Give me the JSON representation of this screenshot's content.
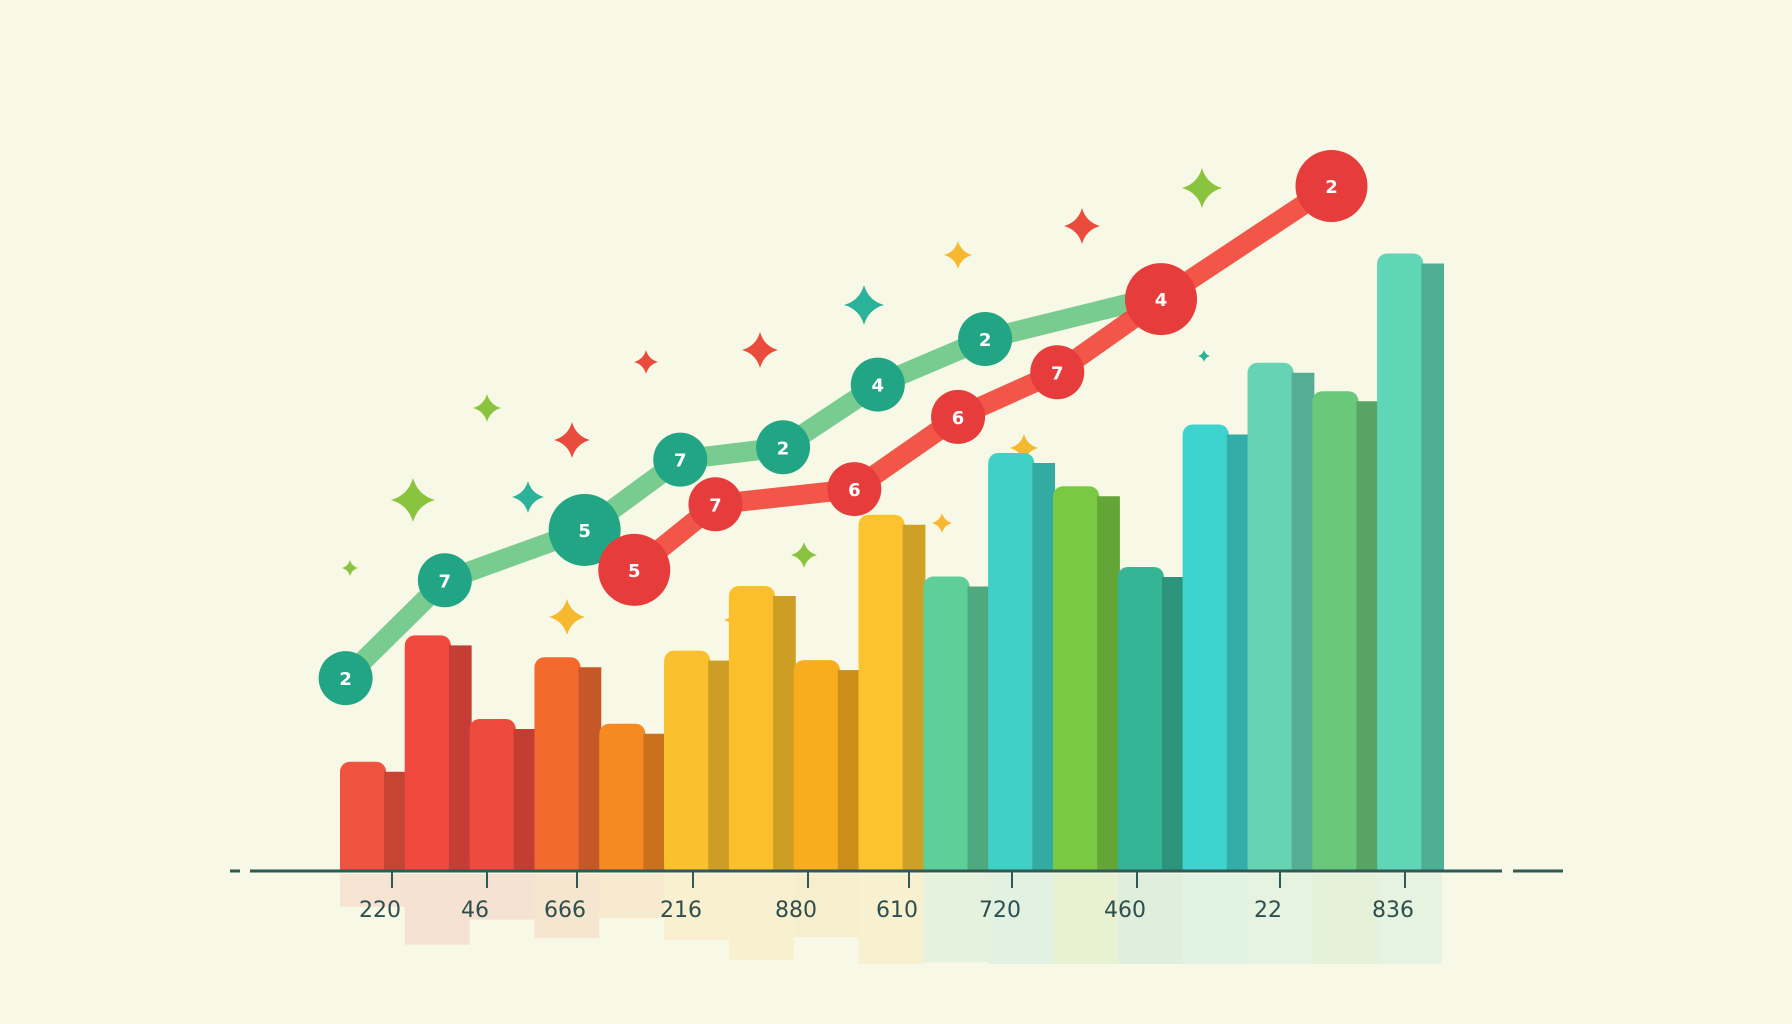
{
  "chart_data": {
    "type": "bar",
    "categories": [
      "220",
      "46",
      "666",
      "216",
      "880",
      "610",
      "720",
      "460",
      "22",
      "836"
    ],
    "bars": [
      {
        "value": 115,
        "color": "#f0533f"
      },
      {
        "value": 248,
        "color": "#f04a3f"
      },
      {
        "value": 160,
        "color": "#ee4a3e"
      },
      {
        "value": 225,
        "color": "#f26a2e"
      },
      {
        "value": 155,
        "color": "#f58a22"
      },
      {
        "value": 232,
        "color": "#fbc02d"
      },
      {
        "value": 300,
        "color": "#fbbf2c"
      },
      {
        "value": 222,
        "color": "#f7ad1e"
      },
      {
        "value": 375,
        "color": "#fbc32e"
      },
      {
        "value": 310,
        "color": "#5fcf9a"
      },
      {
        "value": 440,
        "color": "#3fd1c6"
      },
      {
        "value": 405,
        "color": "#7ac943"
      },
      {
        "value": 320,
        "color": "#35b596"
      },
      {
        "value": 470,
        "color": "#3ed3cf"
      },
      {
        "value": 535,
        "color": "#66d3b5"
      },
      {
        "value": 505,
        "color": "#6ac87a"
      },
      {
        "value": 650,
        "color": "#5fd6b6"
      }
    ],
    "series": [
      {
        "color": "#6cc889",
        "marker_color": "#22a585",
        "points": [
          {
            "x": 0.04,
            "y": 203,
            "label": "2"
          },
          {
            "x": 1.14,
            "y": 306,
            "label": "7"
          },
          {
            "x": 2.69,
            "y": 359,
            "label": "5"
          },
          {
            "x": 3.75,
            "y": 433,
            "label": "7"
          },
          {
            "x": 4.89,
            "y": 446,
            "label": "2"
          },
          {
            "x": 5.94,
            "y": 512,
            "label": "4"
          },
          {
            "x": 7.13,
            "y": 560,
            "label": "2"
          },
          {
            "x": 9.13,
            "y": 607,
            "label": null
          }
        ]
      },
      {
        "color": "#f0483c",
        "marker_color": "#e63c3c",
        "points": [
          {
            "x": 3.24,
            "y": 317,
            "label": "5"
          },
          {
            "x": 4.14,
            "y": 386,
            "label": "7"
          },
          {
            "x": 5.68,
            "y": 402,
            "label": "6"
          },
          {
            "x": 6.83,
            "y": 478,
            "label": "6"
          },
          {
            "x": 7.93,
            "y": 525,
            "label": "7"
          },
          {
            "x": 9.08,
            "y": 602,
            "label": "4"
          },
          {
            "x": 10.97,
            "y": 721,
            "label": "2"
          }
        ]
      }
    ],
    "xlabel": "",
    "ylabel": "",
    "ylim": [
      0,
      800
    ],
    "grid": false,
    "legend": "none",
    "colors": {
      "axis": "#2f5a57",
      "sparkle_red": "#e94b3c",
      "sparkle_green": "#8ac43f",
      "sparkle_teal": "#2bb39a",
      "sparkle_yellow": "#f5b82e"
    }
  }
}
